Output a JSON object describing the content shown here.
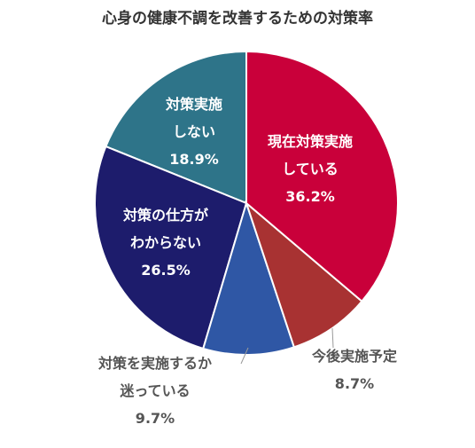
{
  "chart_data": {
    "type": "pie",
    "title": "心身の健康不調を改善するための対策率",
    "categories": [
      "現在対策実施\nしている",
      "今後実施予定",
      "対策を実施するか\n迷っている",
      "対策の仕方が\nわからない",
      "対策実施\nしない"
    ],
    "values": [
      36.2,
      8.7,
      9.7,
      26.5,
      18.9
    ],
    "value_labels": [
      "36.2%",
      "8.7%",
      "9.7%",
      "26.5%",
      "18.9%"
    ],
    "colors": [
      "#c9003a",
      "#a83232",
      "#2f57a5",
      "#1d1c6c",
      "#2e7489"
    ]
  }
}
